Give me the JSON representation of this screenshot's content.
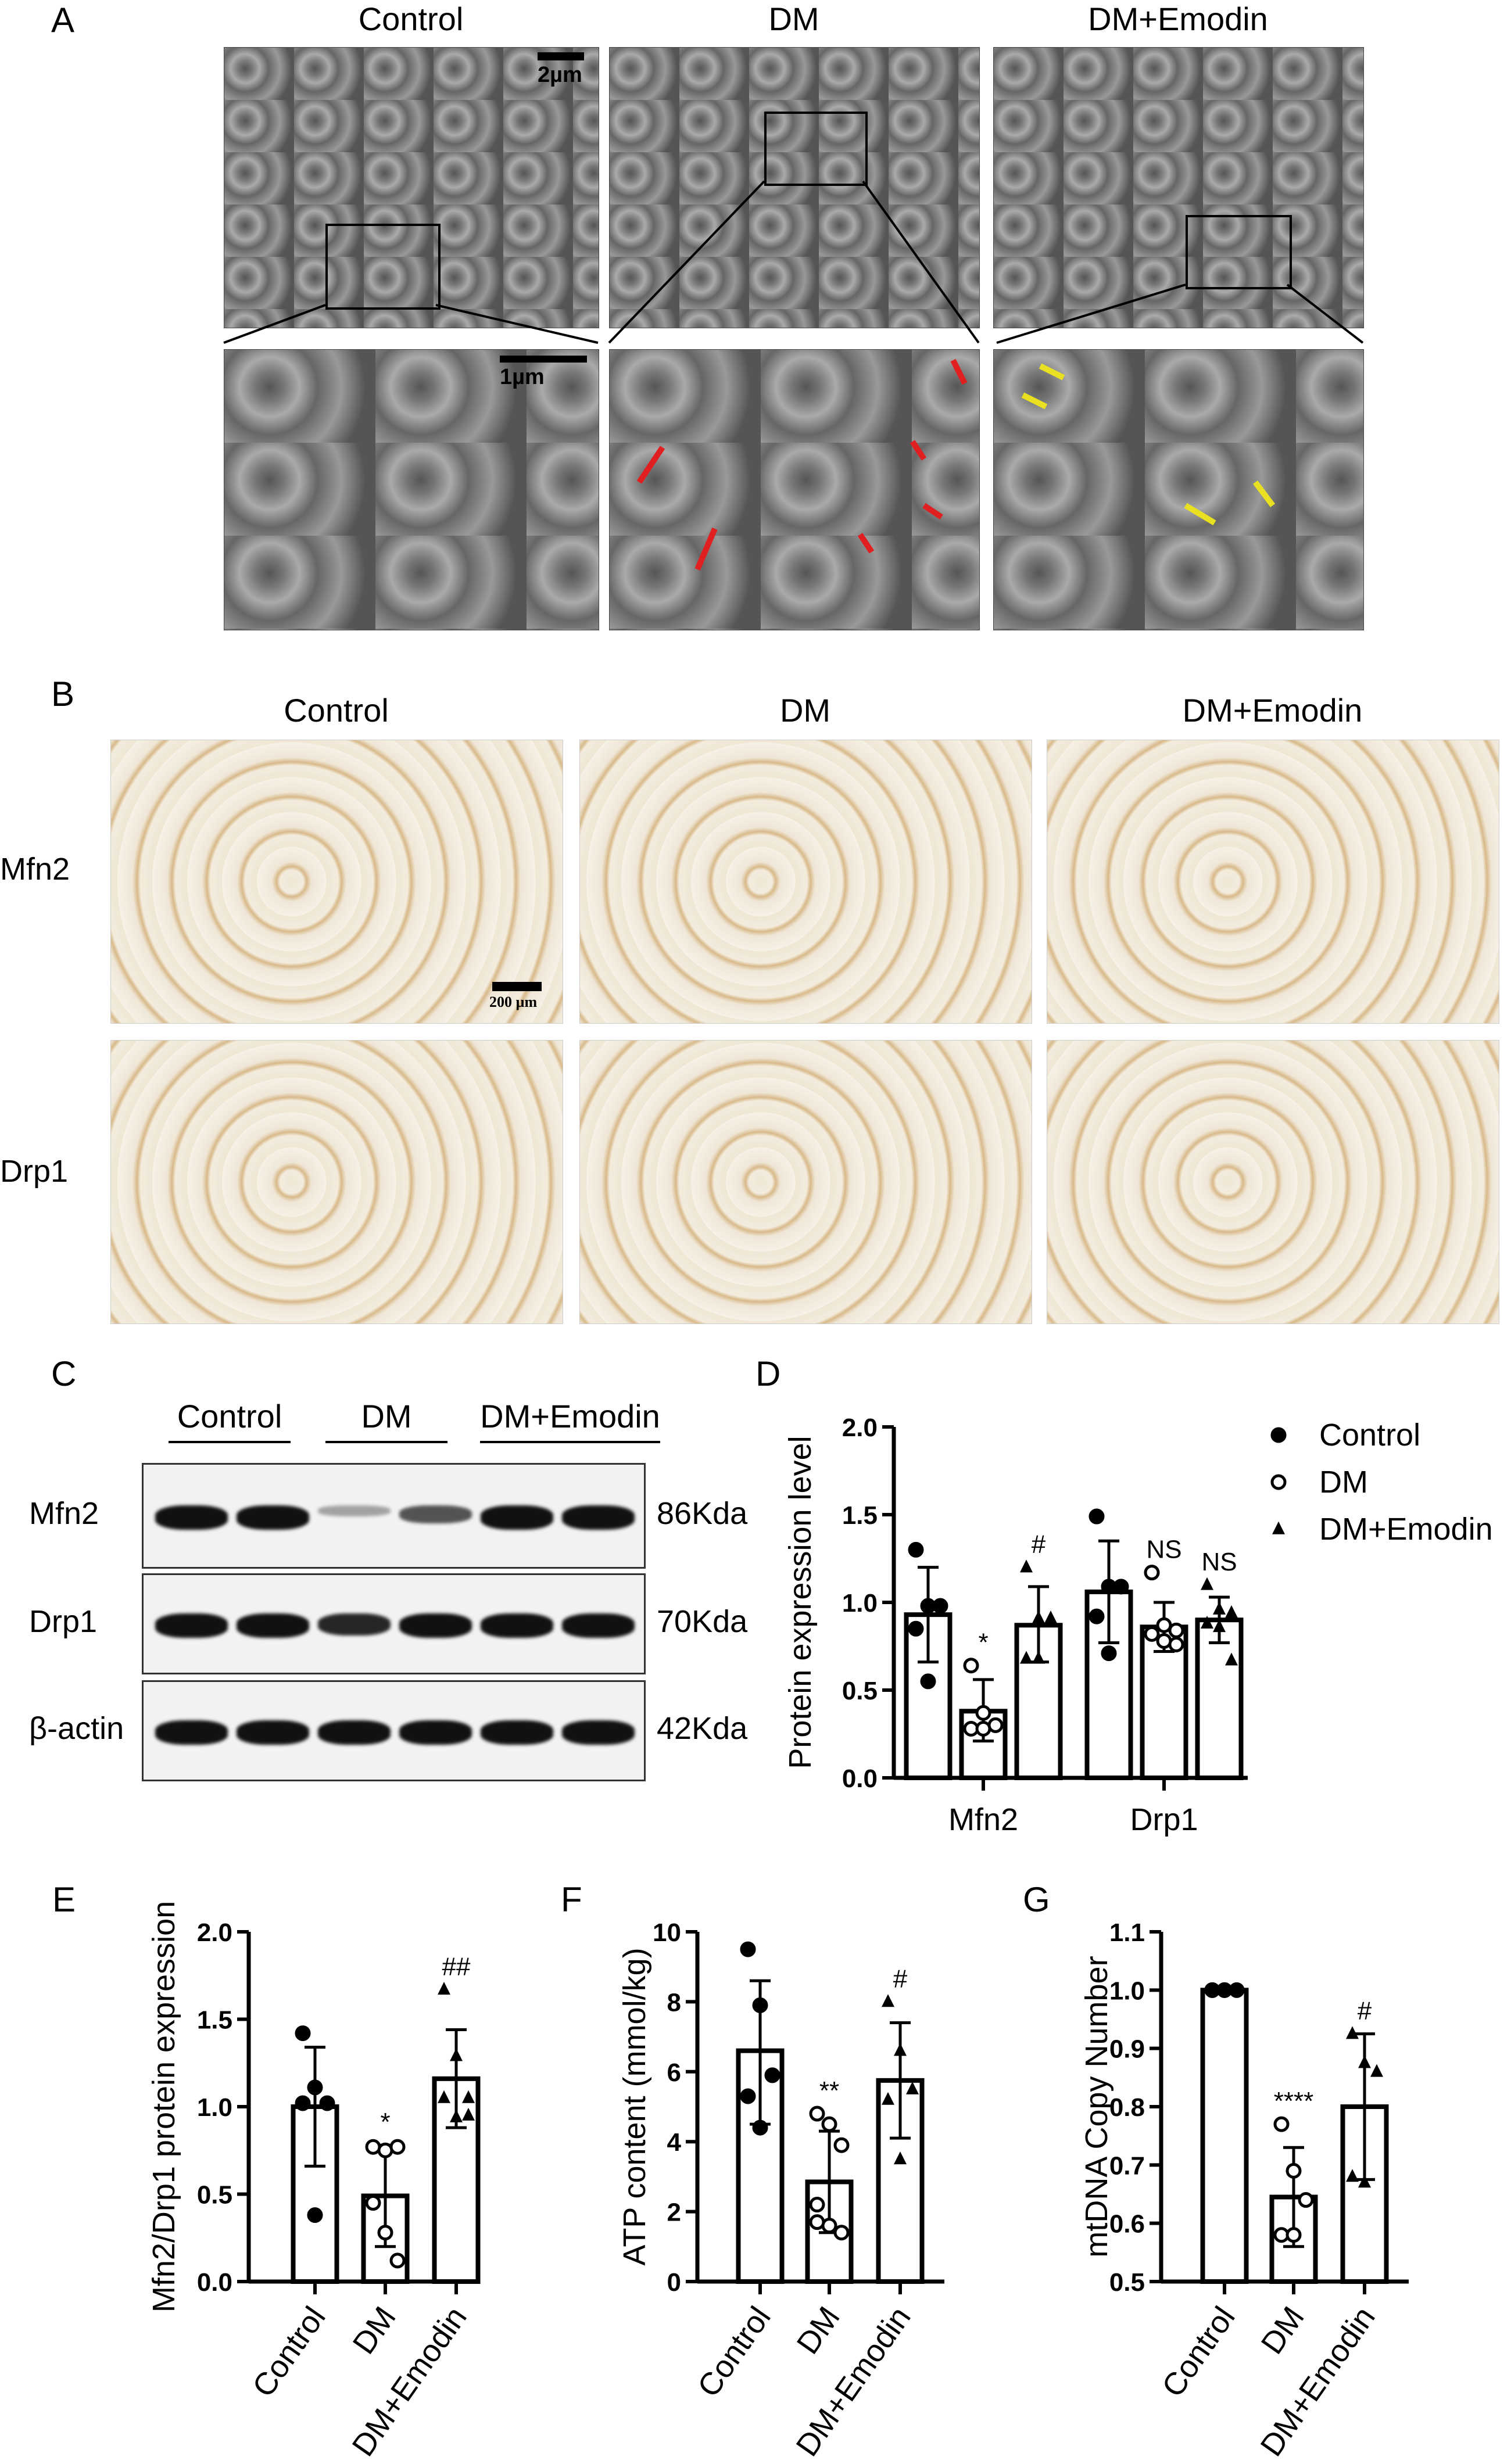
{
  "panelA": {
    "label": "A",
    "columns": [
      "Control",
      "DM",
      "DM+Emodin"
    ],
    "scale_top": "2µm",
    "scale_bottom": "1µm"
  },
  "panelB": {
    "label": "B",
    "columns": [
      "Control",
      "DM",
      "DM+Emodin"
    ],
    "rows": [
      "Mfn2",
      "Drp1"
    ],
    "scale": "200 µm"
  },
  "panelC": {
    "label": "C",
    "groups": [
      "Control",
      "DM",
      "DM+Emodin"
    ],
    "rows": [
      {
        "name": "Mfn2",
        "size": "86Kda"
      },
      {
        "name": "Drp1",
        "size": "70Kda"
      },
      {
        "name": "β-actin",
        "size": "42Kda"
      }
    ]
  },
  "colors": {
    "arrow_dm": "#e02020",
    "arrow_emodin": "#e8e020"
  },
  "chart_data": [
    {
      "panel": "D",
      "type": "bar",
      "ylabel": "Protein expression level",
      "ylim": [
        0,
        2.0
      ],
      "yticks": [
        "0.0",
        "0.5",
        "1.0",
        "1.5",
        "2.0"
      ],
      "categories": [
        "Mfn2",
        "Drp1"
      ],
      "legend": {
        "placement": "right",
        "entries": [
          "Control",
          "DM",
          "DM+Emodin"
        ]
      },
      "series": [
        {
          "name": "Control",
          "marker": "filled-circle",
          "means": [
            0.93,
            1.06
          ],
          "err": [
            [
              0.66,
              1.2
            ],
            [
              0.77,
              1.35
            ]
          ],
          "points": [
            [
              1.3,
              0.98,
              0.98,
              0.85,
              0.55
            ],
            [
              1.49,
              1.09,
              1.09,
              0.92,
              0.71
            ]
          ],
          "annot": [
            "",
            ""
          ]
        },
        {
          "name": "DM",
          "marker": "open-circle",
          "means": [
            0.38,
            0.86
          ],
          "err": [
            [
              0.21,
              0.56
            ],
            [
              0.72,
              1.0
            ]
          ],
          "points": [
            [
              0.64,
              0.37,
              0.3,
              0.28,
              0.28
            ],
            [
              1.17,
              0.87,
              0.84,
              0.82,
              0.78,
              0.76
            ]
          ],
          "annot": [
            "*",
            "NS"
          ]
        },
        {
          "name": "DM+Emodin",
          "marker": "triangle",
          "means": [
            0.87,
            0.9
          ],
          "err": [
            [
              0.66,
              1.09
            ],
            [
              0.77,
              1.03
            ]
          ],
          "points": [
            [
              1.2,
              0.91,
              0.91,
              0.68,
              0.68
            ],
            [
              1.1,
              0.96,
              0.94,
              0.88,
              0.86,
              0.67
            ]
          ],
          "annot": [
            "#",
            "NS"
          ]
        }
      ]
    },
    {
      "panel": "E",
      "type": "bar",
      "ylabel": "Mfn2/Drp1 protein expression",
      "ylim": [
        0,
        2.0
      ],
      "yticks": [
        "0.0",
        "0.5",
        "1.0",
        "1.5",
        "2.0"
      ],
      "categories": [
        "Control",
        "DM",
        "DM+Emodin"
      ],
      "means": [
        1.0,
        0.49,
        1.16
      ],
      "err": [
        [
          0.66,
          1.34
        ],
        [
          0.2,
          0.78
        ],
        [
          0.88,
          1.44
        ]
      ],
      "points": [
        [
          1.42,
          1.11,
          1.02,
          1.02,
          0.38
        ],
        [
          0.77,
          0.75,
          0.77,
          0.45,
          0.28,
          0.12
        ],
        [
          1.67,
          1.29,
          1.05,
          1.05,
          0.94,
          0.95
        ]
      ],
      "annot": [
        "",
        "*",
        "##"
      ]
    },
    {
      "panel": "F",
      "type": "bar",
      "ylabel": "ATP content (mmol/kg)",
      "ylim": [
        0,
        10
      ],
      "yticks": [
        "0",
        "2",
        "4",
        "6",
        "8",
        "10"
      ],
      "categories": [
        "Control",
        "DM",
        "DM+Emodin"
      ],
      "means": [
        6.6,
        2.85,
        5.75
      ],
      "err": [
        [
          4.5,
          8.6
        ],
        [
          1.4,
          4.3
        ],
        [
          4.1,
          7.4
        ]
      ],
      "points": [
        [
          9.5,
          7.9,
          5.9,
          5.3,
          4.4
        ],
        [
          4.8,
          4.5,
          3.9,
          2.2,
          1.6,
          1.4,
          1.7
        ],
        [
          8.0,
          6.6,
          5.5,
          5.2,
          3.5
        ]
      ],
      "annot": [
        "",
        "**",
        "#"
      ]
    },
    {
      "panel": "G",
      "type": "bar",
      "ylabel": "mtDNA Copy Number",
      "ylim": [
        0.5,
        1.1
      ],
      "yticks": [
        "0.5",
        "0.6",
        "0.7",
        "0.8",
        "0.9",
        "1.0",
        "1.1"
      ],
      "categories": [
        "Control",
        "DM",
        "DM+Emodin"
      ],
      "means": [
        1.0,
        0.645,
        0.8
      ],
      "err": [
        null,
        [
          0.56,
          0.73
        ],
        [
          0.675,
          0.925
        ]
      ],
      "points": [
        [
          1,
          1,
          1,
          1,
          1
        ],
        [
          0.77,
          0.69,
          0.64,
          0.58,
          0.58
        ],
        [
          0.925,
          0.875,
          0.86,
          0.68,
          0.67
        ]
      ],
      "annot": [
        "",
        "****",
        "#"
      ]
    }
  ]
}
